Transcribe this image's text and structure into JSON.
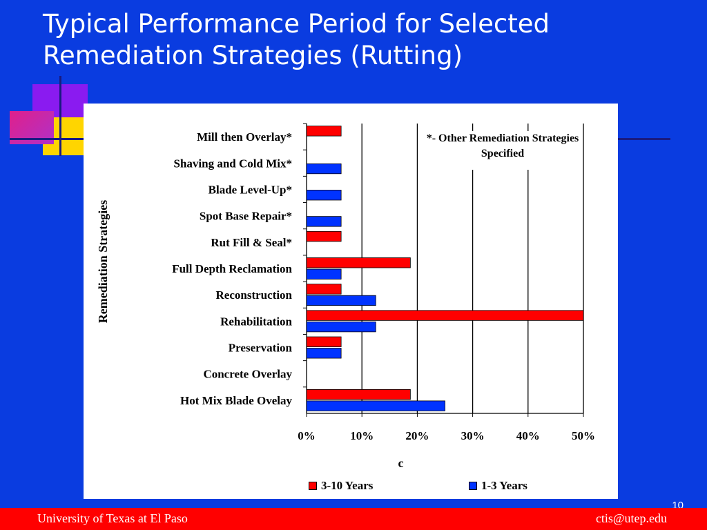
{
  "slide": {
    "title": "Typical Performance Period for Selected Remediation Strategies  (Rutting)",
    "page_number": "10",
    "footer_left": "University of Texas at El Paso",
    "footer_right": "ctis@utep.edu"
  },
  "colors": {
    "background": "#0a3ce0",
    "footer": "#ff0000",
    "series_3_10": "#ff0000",
    "series_1_3": "#0033ff"
  },
  "chart_data": {
    "type": "bar",
    "orientation": "horizontal",
    "title": "",
    "xlabel": "c",
    "ylabel": "Remediation Strategies",
    "xlim": [
      0,
      50
    ],
    "x_ticks": [
      "0%",
      "10%",
      "20%",
      "30%",
      "40%",
      "50%"
    ],
    "grid": "vertical",
    "legend_position": "bottom",
    "note": "*- Other Remediation Strategies Specified",
    "categories": [
      "Mill then Overlay*",
      "Shaving and Cold Mix*",
      "Blade Level-Up*",
      "Spot Base Repair*",
      "Rut Fill & Seal*",
      "Full Depth Reclamation",
      "Reconstruction",
      "Rehabilitation",
      "Preservation",
      "Concrete Overlay",
      "Hot Mix Blade Ovelay"
    ],
    "series": [
      {
        "name": "3-10 Years",
        "color": "#ff0000",
        "values": [
          6.25,
          0,
          0,
          0,
          6.25,
          18.75,
          6.25,
          50,
          6.25,
          0,
          18.75
        ]
      },
      {
        "name": "1-3 Years",
        "color": "#0033ff",
        "values": [
          0,
          6.25,
          6.25,
          6.25,
          0,
          6.25,
          12.5,
          12.5,
          6.25,
          0,
          25
        ]
      }
    ]
  }
}
